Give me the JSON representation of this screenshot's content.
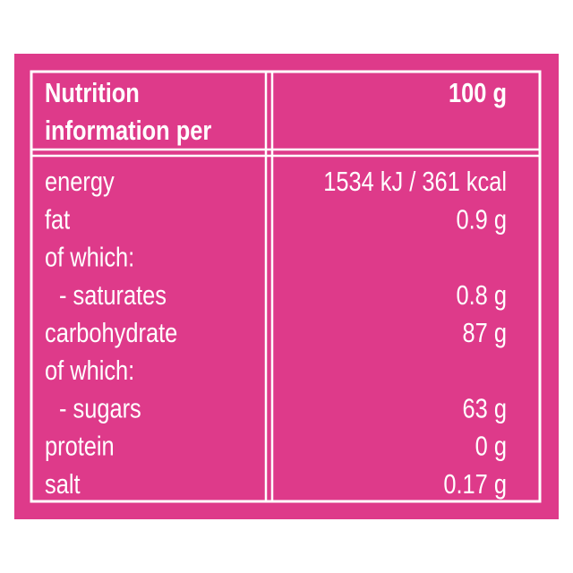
{
  "header": {
    "title_lines": [
      "Nutrition",
      "information per"
    ],
    "value": "100 g"
  },
  "rows": [
    {
      "label": "energy",
      "value": "1534 kJ / 361 kcal"
    },
    {
      "label": "fat",
      "value": "0.9 g"
    },
    {
      "label": "of which:"
    },
    {
      "label": "- saturates",
      "value": "0.8 g",
      "indent": true
    },
    {
      "label": "carbohydrate",
      "value": "87 g"
    },
    {
      "label": "of which:"
    },
    {
      "label": "- sugars",
      "value": "63 g",
      "indent": true
    },
    {
      "label": "protein",
      "value": "0 g"
    },
    {
      "label": "salt",
      "value": "0.17 g"
    }
  ]
}
